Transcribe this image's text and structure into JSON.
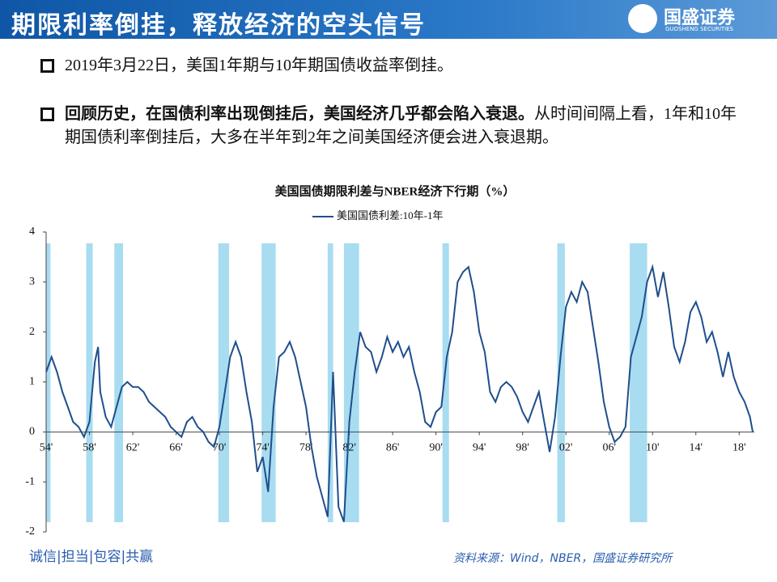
{
  "header": {
    "title": "期限利率倒挂，释放经济的空头信号",
    "logo": "国盛证券",
    "logo_sub": "GUOSHENG SECURITIES"
  },
  "bullets": [
    {
      "text": "2019年3月22日，美国1年期与10年期国债收益率倒挂。"
    },
    {
      "bold": "回顾历史，在国债利率出现倒挂后，美国经济几乎都会陷入衰退。",
      "text": "从时间间隔上看，1年和10年期国债利率倒挂后，大多在半年到2年之间美国经济便会进入衰退期。"
    }
  ],
  "chart_data": {
    "type": "line",
    "title": "美国国债期限利差与NBER经济下行期（%）",
    "x": [
      1954,
      1954.5,
      1955,
      1955.5,
      1956,
      1956.5,
      1957,
      1957.5,
      1958,
      1958.5,
      1958.8,
      1959,
      1959.5,
      1960,
      1960.5,
      1961,
      1961.5,
      1962,
      1962.5,
      1963,
      1963.5,
      1964,
      1964.5,
      1965,
      1965.5,
      1966,
      1966.5,
      1967,
      1967.5,
      1968,
      1968.5,
      1969,
      1969.5,
      1970,
      1970.5,
      1971,
      1971.5,
      1972,
      1972.5,
      1973,
      1973.5,
      1974,
      1974.5,
      1975,
      1975.5,
      1976,
      1976.5,
      1977,
      1977.5,
      1978,
      1978.5,
      1979,
      1979.5,
      1980,
      1980.5,
      1981,
      1981.5,
      1982,
      1982.5,
      1983,
      1983.5,
      1984,
      1984.5,
      1985,
      1985.5,
      1986,
      1986.5,
      1987,
      1987.5,
      1988,
      1988.5,
      1989,
      1989.5,
      1990,
      1990.5,
      1991,
      1991.5,
      1992,
      1992.5,
      1993,
      1993.5,
      1994,
      1994.5,
      1995,
      1995.5,
      1996,
      1996.5,
      1997,
      1997.5,
      1998,
      1998.5,
      1999,
      1999.5,
      2000,
      2000.5,
      2001,
      2001.5,
      2002,
      2002.5,
      2003,
      2003.5,
      2004,
      2004.5,
      2005,
      2005.5,
      2006,
      2006.5,
      2007,
      2007.5,
      2008,
      2008.5,
      2009,
      2009.5,
      2010,
      2010.5,
      2011,
      2011.5,
      2012,
      2012.5,
      2013,
      2013.5,
      2014,
      2014.5,
      2015,
      2015.5,
      2016,
      2016.5,
      2017,
      2017.5,
      2018,
      2018.5,
      2019,
      2019.25
    ],
    "series": [
      {
        "name": "美国国债利差:10年-1年",
        "color": "#1f4e8c",
        "values": [
          1.2,
          1.5,
          1.2,
          0.8,
          0.5,
          0.2,
          0.1,
          -0.1,
          0.2,
          1.4,
          1.7,
          0.8,
          0.3,
          0.1,
          0.5,
          0.9,
          1.0,
          0.9,
          0.9,
          0.8,
          0.6,
          0.5,
          0.4,
          0.3,
          0.1,
          0.0,
          -0.1,
          0.2,
          0.3,
          0.1,
          0.0,
          -0.2,
          -0.3,
          0.1,
          0.8,
          1.5,
          1.8,
          1.5,
          0.8,
          0.2,
          -0.8,
          -0.5,
          -1.2,
          0.5,
          1.5,
          1.6,
          1.8,
          1.5,
          1.0,
          0.5,
          -0.3,
          -0.9,
          -1.3,
          -1.7,
          1.2,
          -1.5,
          -1.8,
          0.2,
          1.2,
          2.0,
          1.7,
          1.6,
          1.2,
          1.5,
          1.9,
          1.6,
          1.8,
          1.5,
          1.7,
          1.2,
          0.8,
          0.2,
          0.1,
          0.4,
          0.5,
          1.5,
          2.0,
          3.0,
          3.2,
          3.3,
          2.8,
          2.0,
          1.6,
          0.8,
          0.6,
          0.9,
          1.0,
          0.9,
          0.7,
          0.4,
          0.2,
          0.5,
          0.8,
          0.2,
          -0.4,
          0.3,
          1.5,
          2.5,
          2.8,
          2.6,
          3.0,
          2.8,
          2.1,
          1.4,
          0.6,
          0.1,
          -0.2,
          -0.1,
          0.1,
          1.5,
          1.9,
          2.3,
          3.0,
          3.3,
          2.7,
          3.2,
          2.5,
          1.7,
          1.4,
          1.8,
          2.4,
          2.6,
          2.3,
          1.8,
          2.0,
          1.6,
          1.1,
          1.6,
          1.1,
          0.8,
          0.6,
          0.3,
          0.0
        ]
      }
    ],
    "recessions": [
      {
        "start": 1954.0,
        "end": 1954.4
      },
      {
        "start": 1957.7,
        "end": 1958.3
      },
      {
        "start": 1960.3,
        "end": 1961.1
      },
      {
        "start": 1969.9,
        "end": 1970.9
      },
      {
        "start": 1973.9,
        "end": 1975.2
      },
      {
        "start": 1980.0,
        "end": 1980.5
      },
      {
        "start": 1981.5,
        "end": 1982.9
      },
      {
        "start": 1990.6,
        "end": 1991.2
      },
      {
        "start": 2001.2,
        "end": 2001.9
      },
      {
        "start": 2007.9,
        "end": 2009.5
      }
    ],
    "recession_color": "#a8dcf0",
    "xlim": [
      1954,
      2019.4
    ],
    "xticks": [
      {
        "value": 1954,
        "label": "54'"
      },
      {
        "value": 1958,
        "label": "58'"
      },
      {
        "value": 1962,
        "label": "62'"
      },
      {
        "value": 1966,
        "label": "66'"
      },
      {
        "value": 1970,
        "label": "70'"
      },
      {
        "value": 1974,
        "label": "74'"
      },
      {
        "value": 1978,
        "label": "78'"
      },
      {
        "value": 1982,
        "label": "82'"
      },
      {
        "value": 1986,
        "label": "86'"
      },
      {
        "value": 1990,
        "label": "90'"
      },
      {
        "value": 1994,
        "label": "94'"
      },
      {
        "value": 1998,
        "label": "98'"
      },
      {
        "value": 2002,
        "label": "02'"
      },
      {
        "value": 2006,
        "label": "06'"
      },
      {
        "value": 2010,
        "label": "10'"
      },
      {
        "value": 2014,
        "label": "14'"
      },
      {
        "value": 2018,
        "label": "18'"
      }
    ],
    "ylim": [
      -2,
      4
    ],
    "yticks": [
      -2,
      -1,
      0,
      1,
      2,
      3,
      4
    ],
    "legend": "top"
  },
  "footer": {
    "motto": "诚信|担当|包容|共赢",
    "source": "资料来源：Wind，NBER，国盛证券研究所"
  }
}
